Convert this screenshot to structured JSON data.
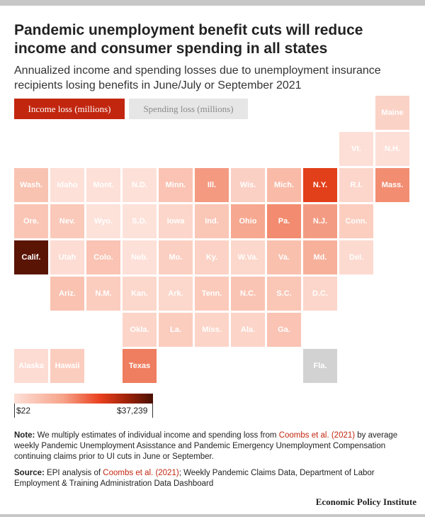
{
  "title": "Pandemic unemployment benefit cuts will reduce income and consumer spending in all states",
  "subtitle": "Annualized income and spending losses due to unemployment insurance recipients losing benefits in June/July or September 2021",
  "tabs": [
    {
      "label": "Income loss (millions)",
      "active": true
    },
    {
      "label": "Spending loss (millions)",
      "active": false
    }
  ],
  "legend": {
    "min_label": "$22",
    "max_label": "$37,239",
    "gradient_colors": [
      "#fde0d8",
      "#f7a48a",
      "#e9401e",
      "#9c2208",
      "#4a1003"
    ]
  },
  "states": [
    {
      "abbr": "Maine",
      "col": 10,
      "row": 0,
      "color": "#fbd2c6"
    },
    {
      "abbr": "Vt.",
      "col": 9,
      "row": 1,
      "color": "#fddfd7"
    },
    {
      "abbr": "N.H.",
      "col": 10,
      "row": 1,
      "color": "#fddfd7"
    },
    {
      "abbr": "Wash.",
      "col": 0,
      "row": 2,
      "color": "#f9c3b2"
    },
    {
      "abbr": "Idaho",
      "col": 1,
      "row": 2,
      "color": "#fde0d8"
    },
    {
      "abbr": "Mont.",
      "col": 2,
      "row": 2,
      "color": "#fde0d8"
    },
    {
      "abbr": "N.D.",
      "col": 3,
      "row": 2,
      "color": "#fde1d9"
    },
    {
      "abbr": "Minn.",
      "col": 4,
      "row": 2,
      "color": "#fac3b3"
    },
    {
      "abbr": "Ill.",
      "col": 5,
      "row": 2,
      "color": "#f49a81"
    },
    {
      "abbr": "Wis.",
      "col": 6,
      "row": 2,
      "color": "#fbd0c4"
    },
    {
      "abbr": "Mich.",
      "col": 7,
      "row": 2,
      "color": "#f9bba8"
    },
    {
      "abbr": "N.Y.",
      "col": 8,
      "row": 2,
      "color": "#e2401b"
    },
    {
      "abbr": "R.I.",
      "col": 9,
      "row": 2,
      "color": "#fcd6cb"
    },
    {
      "abbr": "Mass.",
      "col": 10,
      "row": 2,
      "color": "#f28d72"
    },
    {
      "abbr": "Ore.",
      "col": 0,
      "row": 3,
      "color": "#fac5b5"
    },
    {
      "abbr": "Nev.",
      "col": 1,
      "row": 3,
      "color": "#fac9ba"
    },
    {
      "abbr": "Wyo.",
      "col": 2,
      "row": 3,
      "color": "#fde2da"
    },
    {
      "abbr": "S.D.",
      "col": 3,
      "row": 3,
      "color": "#fde2da"
    },
    {
      "abbr": "Iowa",
      "col": 4,
      "row": 3,
      "color": "#fcd6ca"
    },
    {
      "abbr": "Ind.",
      "col": 5,
      "row": 3,
      "color": "#fac6b6"
    },
    {
      "abbr": "Ohio",
      "col": 6,
      "row": 3,
      "color": "#f6a890"
    },
    {
      "abbr": "Pa.",
      "col": 7,
      "row": 3,
      "color": "#f28b6f"
    },
    {
      "abbr": "N.J.",
      "col": 8,
      "row": 3,
      "color": "#f49c83"
    },
    {
      "abbr": "Conn.",
      "col": 9,
      "row": 3,
      "color": "#fbcebf"
    },
    {
      "abbr": "Calif.",
      "col": 0,
      "row": 4,
      "color": "#5a1404"
    },
    {
      "abbr": "Utah",
      "col": 1,
      "row": 4,
      "color": "#fddcd3"
    },
    {
      "abbr": "Colo.",
      "col": 2,
      "row": 4,
      "color": "#fac3b3"
    },
    {
      "abbr": "Neb.",
      "col": 3,
      "row": 4,
      "color": "#fde0d8"
    },
    {
      "abbr": "Mo.",
      "col": 4,
      "row": 4,
      "color": "#fbcfc1"
    },
    {
      "abbr": "Ky.",
      "col": 5,
      "row": 4,
      "color": "#fbd2c5"
    },
    {
      "abbr": "W.Va.",
      "col": 6,
      "row": 4,
      "color": "#fcd7cb"
    },
    {
      "abbr": "Va.",
      "col": 7,
      "row": 4,
      "color": "#f9c0ae"
    },
    {
      "abbr": "Md.",
      "col": 8,
      "row": 4,
      "color": "#f7b09a"
    },
    {
      "abbr": "Del.",
      "col": 9,
      "row": 4,
      "color": "#fcdad0"
    },
    {
      "abbr": "Ariz.",
      "col": 1,
      "row": 5,
      "color": "#f9c2b1"
    },
    {
      "abbr": "N.M.",
      "col": 2,
      "row": 5,
      "color": "#fbcdbf"
    },
    {
      "abbr": "Kan.",
      "col": 3,
      "row": 5,
      "color": "#fcd7cb"
    },
    {
      "abbr": "Ark.",
      "col": 4,
      "row": 5,
      "color": "#fcd7cb"
    },
    {
      "abbr": "Tenn.",
      "col": 5,
      "row": 5,
      "color": "#fbcabb"
    },
    {
      "abbr": "N.C.",
      "col": 6,
      "row": 5,
      "color": "#fac4b4"
    },
    {
      "abbr": "S.C.",
      "col": 7,
      "row": 5,
      "color": "#fac6b6"
    },
    {
      "abbr": "D.C.",
      "col": 8,
      "row": 5,
      "color": "#fcd6ca"
    },
    {
      "abbr": "Okla.",
      "col": 3,
      "row": 6,
      "color": "#fcd4c8"
    },
    {
      "abbr": "La.",
      "col": 4,
      "row": 6,
      "color": "#fbcdbf"
    },
    {
      "abbr": "Miss.",
      "col": 5,
      "row": 6,
      "color": "#fcd4c8"
    },
    {
      "abbr": "Ala.",
      "col": 6,
      "row": 6,
      "color": "#fcd4c8"
    },
    {
      "abbr": "Ga.",
      "col": 7,
      "row": 6,
      "color": "#fac3b3"
    },
    {
      "abbr": "Alaska",
      "col": 0,
      "row": 7,
      "color": "#fddcd3"
    },
    {
      "abbr": "Hawaii",
      "col": 1,
      "row": 7,
      "color": "#fbcdbf"
    },
    {
      "abbr": "Texas",
      "col": 3,
      "row": 7,
      "color": "#ef7d5f"
    },
    {
      "abbr": "Fla.",
      "col": 8,
      "row": 7,
      "color": "#d2d2d2"
    }
  ],
  "note": {
    "label": "Note:",
    "text_1": " We multiply estimates of individual income and spending loss from ",
    "link": "Coombs et al. (2021)",
    "text_2": " by average weekly Pandemic Unemployment Asisstance and Pandemic Emergency Unemployment Compensation continuing claims prior to UI cuts in June or September."
  },
  "source": {
    "label": "Source:",
    "text_1": " EPI analysis of ",
    "link": "Coombs et al. (2021)",
    "text_2": "; Weekly Pandemic Claims Data, Department of Labor Employment & Training Administration Data Dashboard"
  },
  "brand": "Economic Policy Institute"
}
